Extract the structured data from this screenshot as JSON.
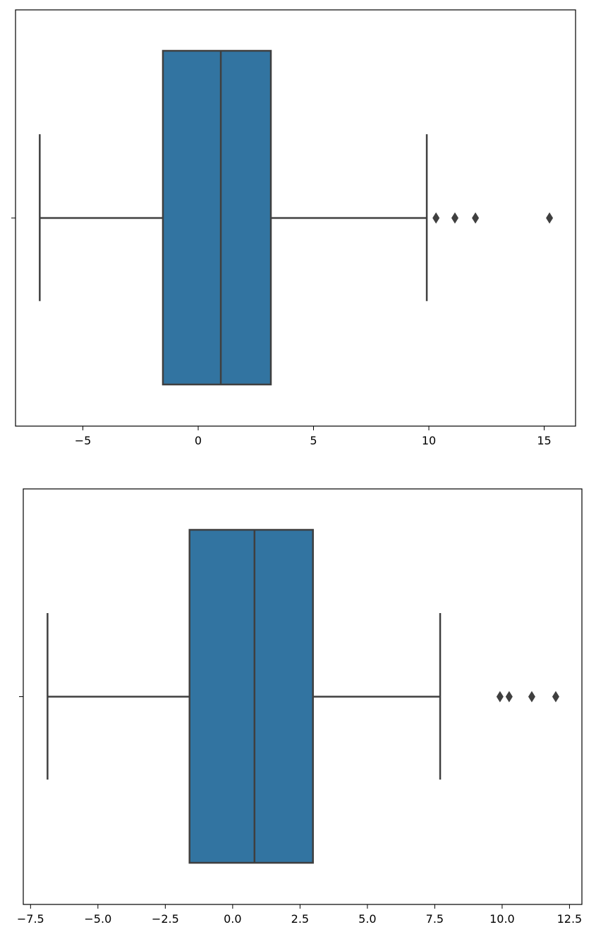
{
  "chart_data": [
    {
      "type": "box",
      "orientation": "horizontal",
      "title": "",
      "xlabel": "",
      "ylabel": "",
      "xlim": [
        -7.92,
        16.36
      ],
      "xticks": [
        -5,
        0,
        5,
        10,
        15
      ],
      "xtick_labels": [
        "−5",
        "0",
        "5",
        "10",
        "15"
      ],
      "grid": false,
      "box": {
        "whisker_low": -6.87,
        "q1": -1.53,
        "median": 0.98,
        "q3": 3.15,
        "whisker_high": 9.91
      },
      "outliers": [
        10.31,
        11.13,
        12.02,
        15.23
      ],
      "colors": {
        "box": "#3274a1",
        "line": "#3f3f3f"
      }
    },
    {
      "type": "box",
      "orientation": "horizontal",
      "title": "",
      "xlabel": "",
      "ylabel": "",
      "xlim": [
        -7.77,
        12.96
      ],
      "xticks": [
        -7.5,
        -5.0,
        -2.5,
        0.0,
        2.5,
        5.0,
        7.5,
        10.0,
        12.5
      ],
      "xtick_labels": [
        "−7.5",
        "−5.0",
        "−2.5",
        "0.0",
        "2.5",
        "5.0",
        "7.5",
        "10.0",
        "12.5"
      ],
      "grid": false,
      "box": {
        "whisker_low": -6.87,
        "q1": -1.6,
        "median": 0.81,
        "q3": 2.98,
        "whisker_high": 7.7
      },
      "outliers": [
        9.92,
        10.26,
        11.1,
        11.99
      ],
      "colors": {
        "box": "#3274a1",
        "line": "#3f3f3f"
      }
    }
  ]
}
